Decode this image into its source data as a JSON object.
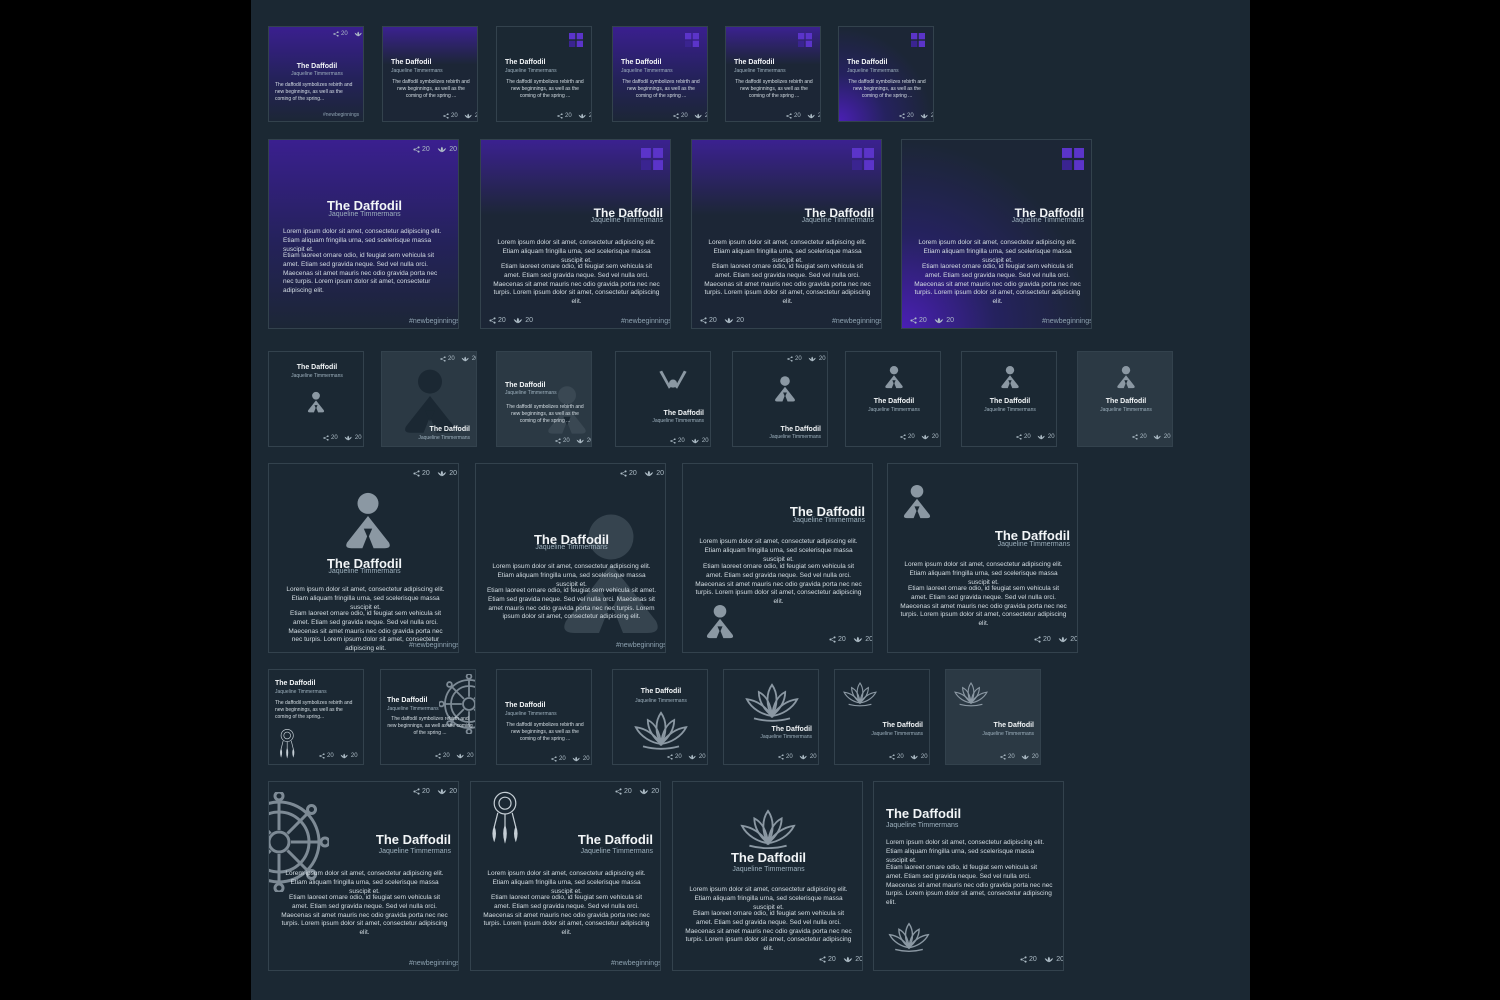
{
  "card": {
    "title": "The Daffodil",
    "author": "Jaqueline Timmermans",
    "short_text": "The daffodil symbolizes rebirth and new beginnings, as well as the coming of the spring ...",
    "short_text_b": "The daffodil symbolizes rebirth and new beginnings, as well as the coming of the spring...",
    "para1": "Lorem ipsum dolor sit amet, consectetur adipiscing elit. Etiam aliquam fringilla urna, sed scelerisque massa suscipit et.",
    "para2": "Etiam laoreet ornare odio, id feugiat sem vehicula sit amet. Etiam sed gravida neque. Sed vel nulla orci. Maecenas sit amet mauris nec odio gravida porta nec nec turpis. Lorem ipsum dolor sit amet, consectetur adipiscing elit.",
    "hashtag": "#newbeginnings",
    "shares": "20",
    "likes": "20"
  },
  "colors": {
    "background": "#1b2833",
    "purple": "#3a1f8f",
    "accent": "#5b34c9",
    "icon_gray": "#8b98a3"
  },
  "icons": [
    "share-icon",
    "lotus-like-icon",
    "square-logo-icon",
    "meditation-figure",
    "lotus-flower",
    "dharma-wheel",
    "dreamcatcher"
  ]
}
